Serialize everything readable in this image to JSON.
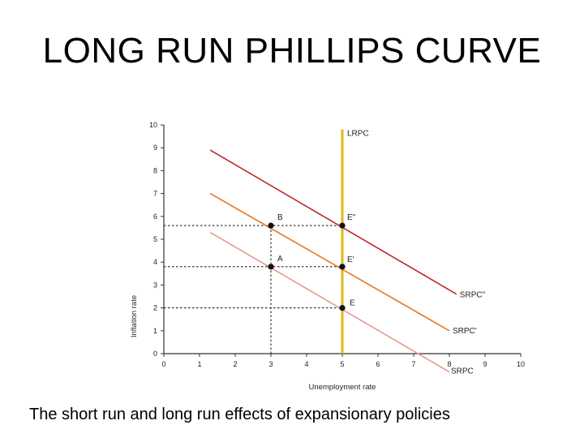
{
  "slide": {
    "title": "LONG RUN PHILLIPS CURVE",
    "caption": "The short run and long run effects of expansionary policies"
  },
  "chart_data": {
    "type": "line",
    "xlabel": "Unemployment rate",
    "ylabel": "Inflation rate",
    "xlim": [
      0,
      10
    ],
    "ylim": [
      0,
      10
    ],
    "xticks": [
      0,
      1,
      2,
      3,
      4,
      5,
      6,
      7,
      8,
      9,
      10
    ],
    "yticks": [
      0,
      1,
      2,
      3,
      4,
      5,
      6,
      7,
      8,
      9,
      10
    ],
    "grid": false,
    "series": [
      {
        "name": "LRPC",
        "color": "#e2b710",
        "x": [
          5,
          5
        ],
        "y": [
          0,
          9.8
        ]
      },
      {
        "name": "SRPC\"",
        "color": "#c0272d",
        "x": [
          1.3,
          8.2
        ],
        "y": [
          8.9,
          2.6
        ]
      },
      {
        "name": "SRPC'",
        "color": "#e8761e",
        "x": [
          1.3,
          8.0
        ],
        "y": [
          7.0,
          1.0
        ]
      },
      {
        "name": "SRPC",
        "color": "#e79a90",
        "x": [
          1.3,
          8.0
        ],
        "y": [
          5.3,
          -0.8
        ]
      }
    ],
    "points": [
      {
        "label": "B",
        "x": 3,
        "y": 5.6
      },
      {
        "label": "E''",
        "x": 5,
        "y": 5.6
      },
      {
        "label": "A",
        "x": 3,
        "y": 3.8
      },
      {
        "label": "E'",
        "x": 5,
        "y": 3.8
      },
      {
        "label": "E",
        "x": 5,
        "y": 2.0
      }
    ],
    "guides": [
      {
        "from": [
          0,
          5.6
        ],
        "to": [
          5,
          5.6
        ]
      },
      {
        "from": [
          0,
          3.8
        ],
        "to": [
          5,
          3.8
        ]
      },
      {
        "from": [
          0,
          2.0
        ],
        "to": [
          5,
          2.0
        ]
      },
      {
        "from": [
          3,
          0
        ],
        "to": [
          3,
          5.6
        ]
      }
    ]
  }
}
